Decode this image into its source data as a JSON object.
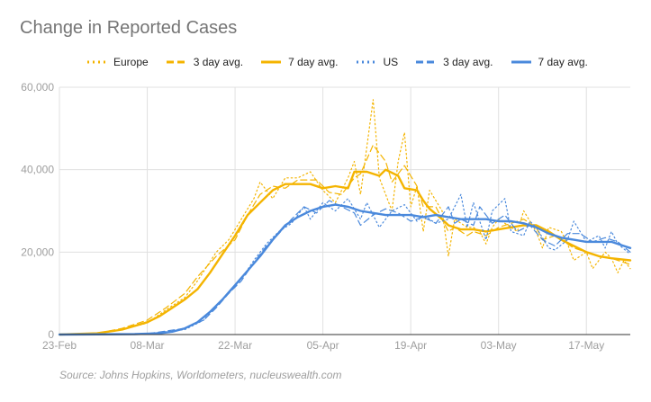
{
  "title": "Change in Reported Cases",
  "source": "Source: Johns Hopkins, Worldometers, nucleuswealth.com",
  "colors": {
    "europe": "#f4b400",
    "us": "#4a89dc",
    "grid": "#e0e0e0",
    "axis": "#333333"
  },
  "chart_data": {
    "type": "line",
    "title": "Change in Reported Cases",
    "x_tick_labels": [
      "23-Feb",
      "08-Mar",
      "22-Mar",
      "05-Apr",
      "19-Apr",
      "03-May",
      "17-May"
    ],
    "x_tick_day_index": [
      0,
      14,
      28,
      42,
      56,
      70,
      84
    ],
    "x_range_days": [
      0,
      91
    ],
    "y_tick_labels": [
      "0",
      "20,000",
      "40,000",
      "60,000"
    ],
    "ylim": [
      0,
      60000
    ],
    "grid": true,
    "legend_position": "top",
    "series": [
      {
        "name": "Europe",
        "style": "dotted",
        "color": "#f4b400",
        "points": [
          [
            0,
            0
          ],
          [
            6,
            300
          ],
          [
            10,
            1200
          ],
          [
            14,
            2800
          ],
          [
            17,
            6000
          ],
          [
            20,
            9000
          ],
          [
            22,
            13000
          ],
          [
            25,
            20000
          ],
          [
            27,
            23000
          ],
          [
            29,
            28000
          ],
          [
            31,
            33000
          ],
          [
            32,
            37000
          ],
          [
            34,
            33000
          ],
          [
            36,
            38000
          ],
          [
            38,
            38000
          ],
          [
            40,
            39500
          ],
          [
            42,
            35000
          ],
          [
            44,
            32000
          ],
          [
            46,
            38000
          ],
          [
            47,
            42000
          ],
          [
            48,
            34000
          ],
          [
            50,
            57000
          ],
          [
            51,
            38000
          ],
          [
            53,
            30000
          ],
          [
            54,
            42000
          ],
          [
            55,
            49000
          ],
          [
            56,
            31000
          ],
          [
            57,
            36000
          ],
          [
            58,
            25000
          ],
          [
            59,
            35000
          ],
          [
            61,
            30000
          ],
          [
            62,
            19000
          ],
          [
            63,
            28000
          ],
          [
            65,
            26000
          ],
          [
            66,
            26000
          ],
          [
            67,
            25000
          ],
          [
            68,
            22000
          ],
          [
            69,
            26000
          ],
          [
            70,
            28000
          ],
          [
            71,
            27000
          ],
          [
            73,
            25000
          ],
          [
            74,
            30000
          ],
          [
            76,
            25000
          ],
          [
            77,
            21000
          ],
          [
            78,
            26000
          ],
          [
            80,
            25000
          ],
          [
            81,
            22000
          ],
          [
            82,
            18000
          ],
          [
            84,
            20000
          ],
          [
            85,
            16000
          ],
          [
            87,
            20000
          ],
          [
            88,
            18500
          ],
          [
            89,
            15000
          ],
          [
            90,
            18000
          ],
          [
            91,
            16000
          ]
        ]
      },
      {
        "name": "3 day avg.",
        "style": "dashed",
        "color": "#f4b400",
        "points": [
          [
            0,
            0
          ],
          [
            6,
            300
          ],
          [
            10,
            1500
          ],
          [
            14,
            3500
          ],
          [
            17,
            6500
          ],
          [
            20,
            10000
          ],
          [
            22,
            14000
          ],
          [
            25,
            19000
          ],
          [
            28,
            23000
          ],
          [
            30,
            29000
          ],
          [
            32,
            34000
          ],
          [
            34,
            36000
          ],
          [
            36,
            35500
          ],
          [
            38,
            37500
          ],
          [
            41,
            37500
          ],
          [
            43,
            34500
          ],
          [
            45,
            34000
          ],
          [
            47,
            38000
          ],
          [
            48,
            39000
          ],
          [
            50,
            46000
          ],
          [
            52,
            42000
          ],
          [
            53,
            37000
          ],
          [
            55,
            41000
          ],
          [
            57,
            36000
          ],
          [
            58,
            31000
          ],
          [
            60,
            31000
          ],
          [
            62,
            25000
          ],
          [
            63,
            26000
          ],
          [
            65,
            24000
          ],
          [
            66,
            25000
          ],
          [
            68,
            24000
          ],
          [
            70,
            26000
          ],
          [
            72,
            27000
          ],
          [
            74,
            28000
          ],
          [
            76,
            26000
          ],
          [
            77,
            23000
          ],
          [
            79,
            24000
          ],
          [
            81,
            22000
          ],
          [
            82,
            21000
          ],
          [
            84,
            20000
          ],
          [
            86,
            19000
          ],
          [
            88,
            18500
          ],
          [
            90,
            17500
          ],
          [
            91,
            17000
          ]
        ]
      },
      {
        "name": "7 day avg.",
        "style": "solid",
        "color": "#f4b400",
        "points": [
          [
            0,
            0
          ],
          [
            6,
            300
          ],
          [
            10,
            1200
          ],
          [
            14,
            3000
          ],
          [
            16,
            4500
          ],
          [
            18,
            6500
          ],
          [
            20,
            8500
          ],
          [
            22,
            11000
          ],
          [
            24,
            15000
          ],
          [
            26,
            19500
          ],
          [
            28,
            24000
          ],
          [
            30,
            29000
          ],
          [
            32,
            32000
          ],
          [
            34,
            35000
          ],
          [
            36,
            36500
          ],
          [
            38,
            36500
          ],
          [
            40,
            36500
          ],
          [
            42,
            35500
          ],
          [
            44,
            36000
          ],
          [
            46,
            35500
          ],
          [
            47,
            39500
          ],
          [
            49,
            39500
          ],
          [
            51,
            38500
          ],
          [
            52,
            40000
          ],
          [
            54,
            38500
          ],
          [
            55,
            35500
          ],
          [
            57,
            35000
          ],
          [
            58,
            32500
          ],
          [
            59,
            30500
          ],
          [
            61,
            28000
          ],
          [
            62,
            26500
          ],
          [
            64,
            25500
          ],
          [
            66,
            25500
          ],
          [
            68,
            25000
          ],
          [
            70,
            25500
          ],
          [
            72,
            26000
          ],
          [
            74,
            26500
          ],
          [
            76,
            26500
          ],
          [
            78,
            25000
          ],
          [
            80,
            23000
          ],
          [
            82,
            21500
          ],
          [
            84,
            20000
          ],
          [
            86,
            19000
          ],
          [
            88,
            18500
          ],
          [
            91,
            18000
          ]
        ]
      },
      {
        "name": "US",
        "style": "dotted",
        "color": "#4a89dc",
        "points": [
          [
            0,
            0
          ],
          [
            14,
            200
          ],
          [
            20,
            1200
          ],
          [
            23,
            3500
          ],
          [
            25,
            7000
          ],
          [
            27,
            10000
          ],
          [
            29,
            13500
          ],
          [
            31,
            18000
          ],
          [
            33,
            22000
          ],
          [
            35,
            25000
          ],
          [
            37,
            27000
          ],
          [
            39,
            31000
          ],
          [
            40,
            28000
          ],
          [
            42,
            32000
          ],
          [
            44,
            30000
          ],
          [
            46,
            33000
          ],
          [
            48,
            28000
          ],
          [
            49,
            32000
          ],
          [
            51,
            26000
          ],
          [
            53,
            30000
          ],
          [
            55,
            31500
          ],
          [
            57,
            27500
          ],
          [
            58,
            29000
          ],
          [
            60,
            27000
          ],
          [
            62,
            28000
          ],
          [
            64,
            34000
          ],
          [
            65,
            26000
          ],
          [
            66,
            32000
          ],
          [
            68,
            23000
          ],
          [
            69,
            30000
          ],
          [
            71,
            33000
          ],
          [
            72,
            25000
          ],
          [
            74,
            24000
          ],
          [
            75,
            27500
          ],
          [
            76,
            26000
          ],
          [
            78,
            21000
          ],
          [
            79,
            20500
          ],
          [
            81,
            23000
          ],
          [
            82,
            27500
          ],
          [
            84,
            22500
          ],
          [
            86,
            24000
          ],
          [
            87,
            21000
          ],
          [
            88,
            25000
          ],
          [
            89,
            22000
          ],
          [
            91,
            19500
          ]
        ]
      },
      {
        "name": "3 day avg.",
        "style": "dashed",
        "color": "#4a89dc",
        "points": [
          [
            0,
            0
          ],
          [
            14,
            200
          ],
          [
            20,
            1500
          ],
          [
            23,
            3500
          ],
          [
            25,
            6500
          ],
          [
            27,
            10000
          ],
          [
            29,
            13000
          ],
          [
            31,
            17500
          ],
          [
            33,
            21500
          ],
          [
            35,
            24500
          ],
          [
            37,
            28000
          ],
          [
            39,
            31000
          ],
          [
            41,
            29500
          ],
          [
            43,
            32500
          ],
          [
            45,
            31000
          ],
          [
            47,
            29500
          ],
          [
            48,
            26500
          ],
          [
            50,
            29000
          ],
          [
            52,
            30500
          ],
          [
            54,
            29500
          ],
          [
            56,
            27500
          ],
          [
            58,
            28500
          ],
          [
            60,
            27000
          ],
          [
            62,
            31000
          ],
          [
            63,
            27000
          ],
          [
            64,
            28000
          ],
          [
            66,
            26500
          ],
          [
            67,
            31000
          ],
          [
            69,
            27000
          ],
          [
            71,
            29000
          ],
          [
            73,
            25000
          ],
          [
            75,
            26500
          ],
          [
            77,
            23000
          ],
          [
            79,
            21500
          ],
          [
            81,
            24500
          ],
          [
            83,
            24500
          ],
          [
            85,
            22500
          ],
          [
            87,
            23500
          ],
          [
            89,
            22500
          ],
          [
            91,
            20000
          ]
        ]
      },
      {
        "name": "7 day avg.",
        "style": "solid",
        "color": "#4a89dc",
        "points": [
          [
            0,
            0
          ],
          [
            12,
            100
          ],
          [
            16,
            300
          ],
          [
            18,
            700
          ],
          [
            20,
            1500
          ],
          [
            22,
            3000
          ],
          [
            24,
            5500
          ],
          [
            26,
            8500
          ],
          [
            28,
            12000
          ],
          [
            30,
            15500
          ],
          [
            32,
            19000
          ],
          [
            34,
            23000
          ],
          [
            36,
            26500
          ],
          [
            38,
            28500
          ],
          [
            40,
            30000
          ],
          [
            42,
            31000
          ],
          [
            44,
            31500
          ],
          [
            46,
            31000
          ],
          [
            48,
            30000
          ],
          [
            50,
            29500
          ],
          [
            52,
            29000
          ],
          [
            54,
            29000
          ],
          [
            56,
            29000
          ],
          [
            58,
            28500
          ],
          [
            60,
            29000
          ],
          [
            62,
            28500
          ],
          [
            64,
            28000
          ],
          [
            66,
            28000
          ],
          [
            68,
            28000
          ],
          [
            70,
            27500
          ],
          [
            72,
            27500
          ],
          [
            74,
            27000
          ],
          [
            76,
            26000
          ],
          [
            78,
            24500
          ],
          [
            80,
            23500
          ],
          [
            82,
            23000
          ],
          [
            84,
            22500
          ],
          [
            86,
            22500
          ],
          [
            88,
            22500
          ],
          [
            90,
            21500
          ],
          [
            91,
            21000
          ]
        ]
      }
    ]
  }
}
